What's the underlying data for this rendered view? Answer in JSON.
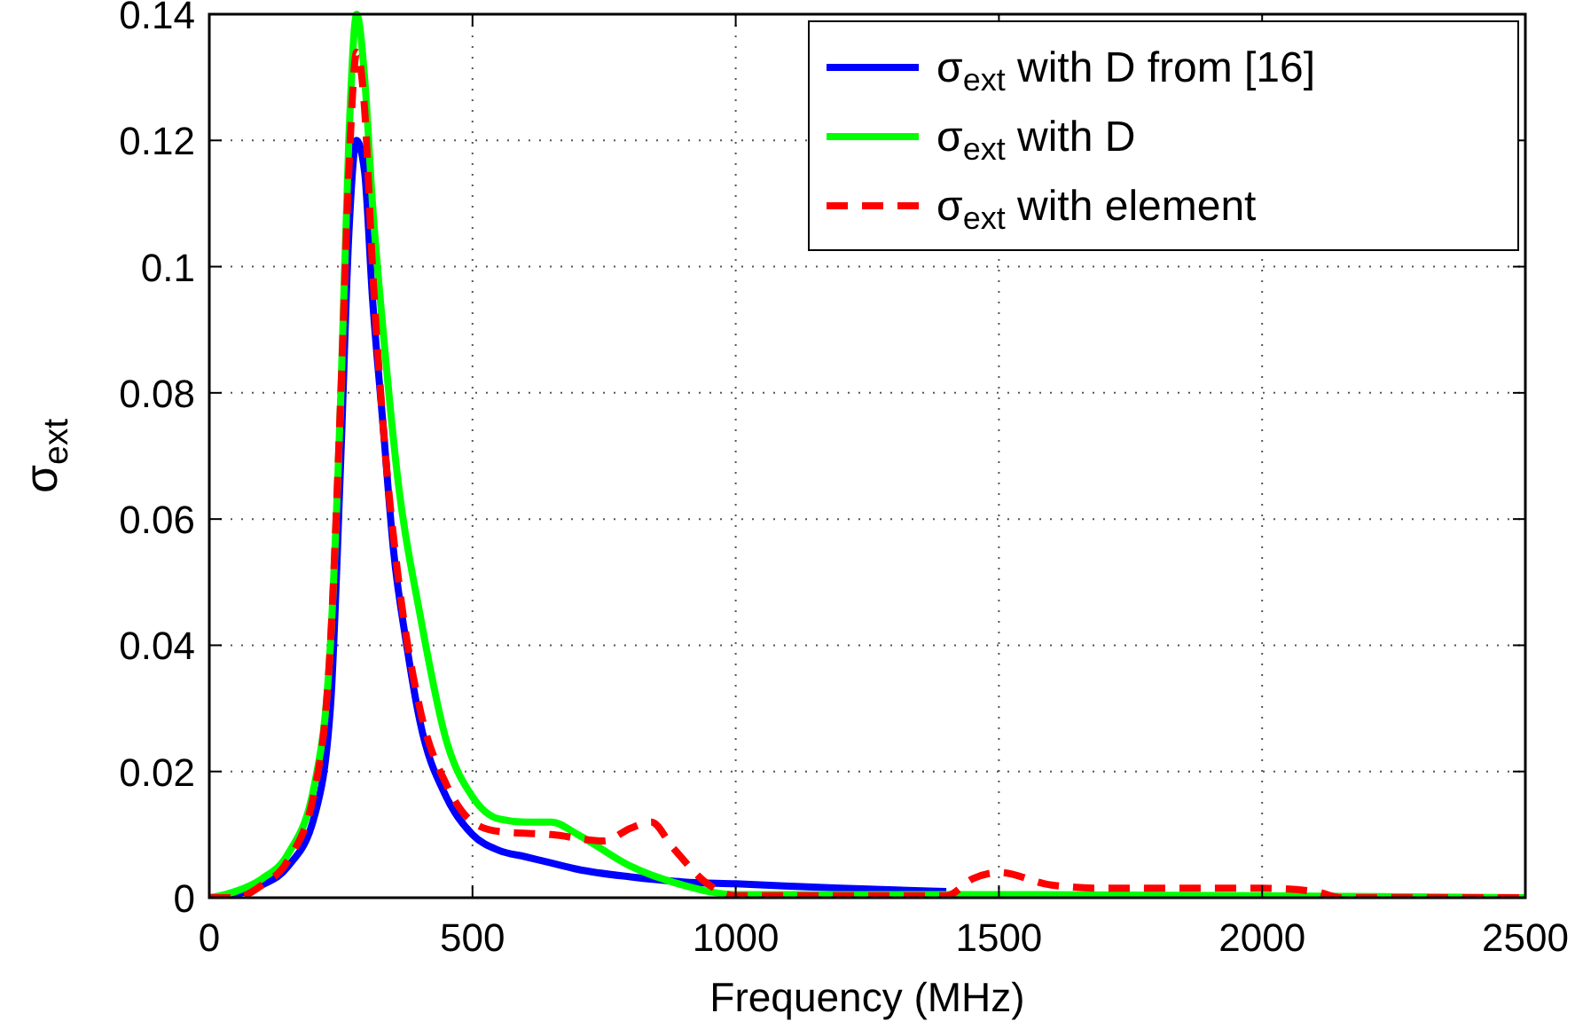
{
  "chart_data": {
    "type": "line",
    "xlabel": "Frequency (MHz)",
    "ylabel": "σ$_{ext}$",
    "xlim": [
      0,
      2500
    ],
    "ylim": [
      0,
      0.14
    ],
    "xticks": [
      0,
      500,
      1000,
      1500,
      2000,
      2500
    ],
    "yticks": [
      0,
      0.02,
      0.04,
      0.06,
      0.08,
      0.1,
      0.12,
      0.14
    ],
    "grid": true,
    "legend": "top right",
    "series": [
      {
        "name": "σ$_{ext}$ with D from [16]",
        "color": "#0000ff",
        "line_style": "solid",
        "x": [
          0,
          50,
          100,
          150,
          200,
          230,
          250,
          265,
          280,
          295,
          310,
          330,
          350,
          375,
          400,
          450,
          500,
          550,
          600,
          650,
          700,
          800,
          900,
          1000,
          1200,
          1400
        ],
        "values": [
          0,
          0.0005,
          0.002,
          0.005,
          0.013,
          0.03,
          0.07,
          0.105,
          0.12,
          0.115,
          0.095,
          0.075,
          0.055,
          0.04,
          0.028,
          0.016,
          0.01,
          0.0075,
          0.0065,
          0.0055,
          0.0045,
          0.0033,
          0.0025,
          0.0022,
          0.0015,
          0.001
        ]
      },
      {
        "name": "σ$_{ext}$ with D",
        "color": "#00ff00",
        "line_style": "solid",
        "x": [
          0,
          50,
          100,
          150,
          200,
          230,
          250,
          265,
          280,
          295,
          310,
          330,
          360,
          400,
          450,
          500,
          550,
          600,
          650,
          700,
          800,
          900,
          1000,
          1500,
          2000,
          2500
        ],
        "values": [
          0,
          0.001,
          0.003,
          0.007,
          0.018,
          0.04,
          0.08,
          0.12,
          0.14,
          0.13,
          0.11,
          0.09,
          0.065,
          0.045,
          0.025,
          0.016,
          0.0125,
          0.012,
          0.012,
          0.01,
          0.005,
          0.002,
          0.0005,
          0.0005,
          0.0003,
          0
        ]
      },
      {
        "name": "σ$_{ext}$ with element",
        "color": "#ff0000",
        "line_style": "dashed",
        "x": [
          0,
          50,
          100,
          150,
          200,
          230,
          250,
          265,
          280,
          295,
          310,
          330,
          360,
          400,
          450,
          500,
          550,
          650,
          750,
          800,
          840,
          880,
          950,
          1000,
          1400,
          1450,
          1500,
          1600,
          1700,
          2000,
          2100,
          2150,
          2500
        ],
        "values": [
          0,
          0,
          0.002,
          0.006,
          0.017,
          0.04,
          0.08,
          0.115,
          0.134,
          0.125,
          0.1,
          0.075,
          0.05,
          0.03,
          0.018,
          0.012,
          0.0105,
          0.01,
          0.009,
          0.011,
          0.012,
          0.008,
          0.002,
          0.0003,
          0.0003,
          0.003,
          0.004,
          0.002,
          0.0015,
          0.0015,
          0.001,
          0,
          0
        ]
      }
    ]
  }
}
